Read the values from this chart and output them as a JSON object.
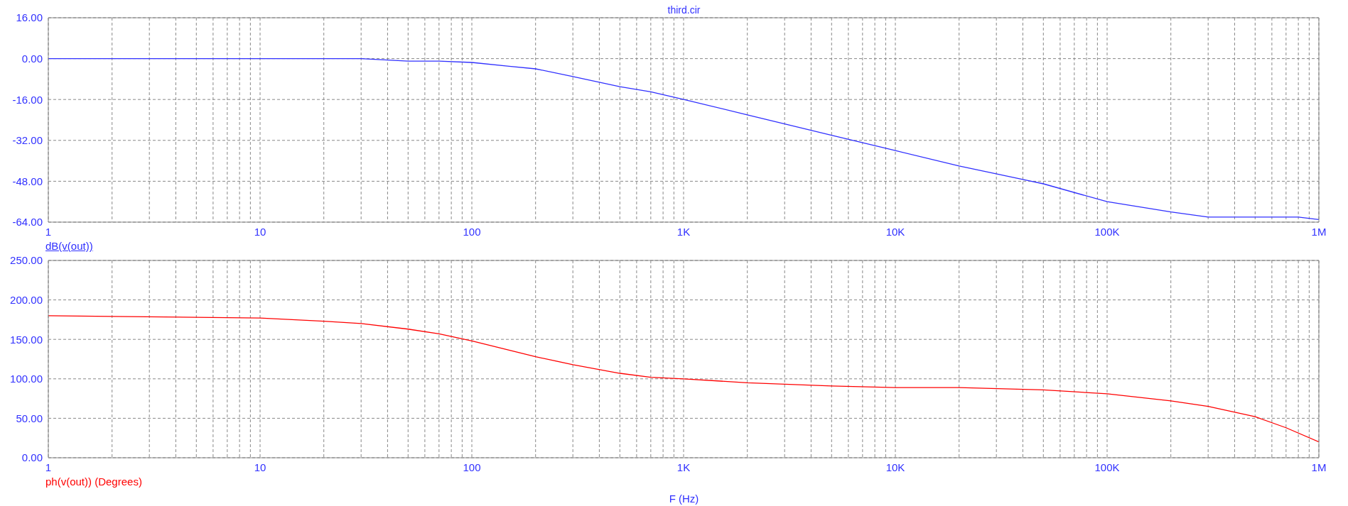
{
  "chart_data": [
    {
      "type": "line",
      "title": "third.cir",
      "log": "x",
      "grid": true,
      "legend": "bottom left",
      "x": [
        1,
        2,
        5,
        10,
        20,
        30,
        50,
        70,
        100,
        150,
        200,
        300,
        500,
        700,
        1000,
        2000,
        5000,
        10000,
        20000,
        50000,
        100000,
        200000,
        300000,
        500000,
        800000,
        1000000
      ],
      "series": [
        {
          "name": "dB(v(out))",
          "color": "#3030ff",
          "values": [
            0,
            0,
            0,
            0,
            0,
            0,
            -1,
            -1,
            -1.5,
            -3,
            -4,
            -7,
            -11,
            -13,
            -16,
            -22,
            -30,
            -36,
            -42,
            -49,
            -56,
            -60,
            -62,
            -62,
            -62,
            -63
          ]
        }
      ],
      "xlim": [
        1,
        1000000
      ],
      "ylim": [
        -64,
        16
      ],
      "yticks": [
        {
          "value": -64,
          "label": "-64.00"
        },
        {
          "value": -48,
          "label": "-48.00"
        },
        {
          "value": -32,
          "label": "-32.00"
        },
        {
          "value": -16,
          "label": "-16.00"
        },
        {
          "value": 0,
          "label": "0.00"
        },
        {
          "value": 16,
          "label": "16.00"
        }
      ],
      "xticks": [
        {
          "value": 1,
          "label": "1"
        },
        {
          "value": 2,
          "label": null
        },
        {
          "value": 3,
          "label": null
        },
        {
          "value": 4,
          "label": null
        },
        {
          "value": 5,
          "label": null
        },
        {
          "value": 6,
          "label": null
        },
        {
          "value": 7,
          "label": null
        },
        {
          "value": 8,
          "label": null
        },
        {
          "value": 9,
          "label": null
        },
        {
          "value": 10,
          "label": "10"
        },
        {
          "value": 20,
          "label": null
        },
        {
          "value": 30,
          "label": null
        },
        {
          "value": 40,
          "label": null
        },
        {
          "value": 50,
          "label": null
        },
        {
          "value": 60,
          "label": null
        },
        {
          "value": 70,
          "label": null
        },
        {
          "value": 80,
          "label": null
        },
        {
          "value": 90,
          "label": null
        },
        {
          "value": 100,
          "label": "100"
        },
        {
          "value": 200,
          "label": null
        },
        {
          "value": 300,
          "label": null
        },
        {
          "value": 400,
          "label": null
        },
        {
          "value": 500,
          "label": null
        },
        {
          "value": 600,
          "label": null
        },
        {
          "value": 700,
          "label": null
        },
        {
          "value": 800,
          "label": null
        },
        {
          "value": 900,
          "label": null
        },
        {
          "value": 1000,
          "label": "1K"
        },
        {
          "value": 2000,
          "label": null
        },
        {
          "value": 3000,
          "label": null
        },
        {
          "value": 4000,
          "label": null
        },
        {
          "value": 5000,
          "label": null
        },
        {
          "value": 6000,
          "label": null
        },
        {
          "value": 7000,
          "label": null
        },
        {
          "value": 8000,
          "label": null
        },
        {
          "value": 9000,
          "label": null
        },
        {
          "value": 10000,
          "label": "10K"
        },
        {
          "value": 20000,
          "label": null
        },
        {
          "value": 30000,
          "label": null
        },
        {
          "value": 40000,
          "label": null
        },
        {
          "value": 50000,
          "label": null
        },
        {
          "value": 60000,
          "label": null
        },
        {
          "value": 70000,
          "label": null
        },
        {
          "value": 80000,
          "label": null
        },
        {
          "value": 90000,
          "label": null
        },
        {
          "value": 100000,
          "label": "100K"
        },
        {
          "value": 200000,
          "label": null
        },
        {
          "value": 300000,
          "label": null
        },
        {
          "value": 400000,
          "label": null
        },
        {
          "value": 500000,
          "label": null
        },
        {
          "value": 600000,
          "label": null
        },
        {
          "value": 700000,
          "label": null
        },
        {
          "value": 800000,
          "label": null
        },
        {
          "value": 900000,
          "label": null
        },
        {
          "value": 1000000,
          "label": "1M"
        }
      ]
    },
    {
      "type": "line",
      "xlabel": "F (Hz)",
      "log": "x",
      "grid": true,
      "legend": "bottom left",
      "x": [
        1,
        2,
        5,
        10,
        20,
        30,
        50,
        70,
        100,
        200,
        300,
        500,
        700,
        1000,
        2000,
        5000,
        10000,
        20000,
        50000,
        100000,
        200000,
        300000,
        500000,
        700000,
        1000000
      ],
      "series": [
        {
          "name": "ph(v(out)) (Degrees)",
          "color": "#ff0000",
          "values": [
            180,
            179,
            178,
            177,
            173,
            170,
            163,
            157,
            148,
            128,
            118,
            107,
            102,
            100,
            95,
            91,
            89,
            89,
            86,
            81,
            72,
            65,
            52,
            38,
            20
          ]
        }
      ],
      "xlim": [
        1,
        1000000
      ],
      "ylim": [
        0,
        250
      ],
      "yticks": [
        {
          "value": 0,
          "label": "0.00"
        },
        {
          "value": 50,
          "label": "50.00"
        },
        {
          "value": 100,
          "label": "100.00"
        },
        {
          "value": 150,
          "label": "150.00"
        },
        {
          "value": 200,
          "label": "200.00"
        },
        {
          "value": 250,
          "label": "250.00"
        }
      ],
      "xticks": [
        {
          "value": 1,
          "label": "1"
        },
        {
          "value": 2,
          "label": null
        },
        {
          "value": 3,
          "label": null
        },
        {
          "value": 4,
          "label": null
        },
        {
          "value": 5,
          "label": null
        },
        {
          "value": 6,
          "label": null
        },
        {
          "value": 7,
          "label": null
        },
        {
          "value": 8,
          "label": null
        },
        {
          "value": 9,
          "label": null
        },
        {
          "value": 10,
          "label": "10"
        },
        {
          "value": 20,
          "label": null
        },
        {
          "value": 30,
          "label": null
        },
        {
          "value": 40,
          "label": null
        },
        {
          "value": 50,
          "label": null
        },
        {
          "value": 60,
          "label": null
        },
        {
          "value": 70,
          "label": null
        },
        {
          "value": 80,
          "label": null
        },
        {
          "value": 90,
          "label": null
        },
        {
          "value": 100,
          "label": "100"
        },
        {
          "value": 200,
          "label": null
        },
        {
          "value": 300,
          "label": null
        },
        {
          "value": 400,
          "label": null
        },
        {
          "value": 500,
          "label": null
        },
        {
          "value": 600,
          "label": null
        },
        {
          "value": 700,
          "label": null
        },
        {
          "value": 800,
          "label": null
        },
        {
          "value": 900,
          "label": null
        },
        {
          "value": 1000,
          "label": "1K"
        },
        {
          "value": 2000,
          "label": null
        },
        {
          "value": 3000,
          "label": null
        },
        {
          "value": 4000,
          "label": null
        },
        {
          "value": 5000,
          "label": null
        },
        {
          "value": 6000,
          "label": null
        },
        {
          "value": 7000,
          "label": null
        },
        {
          "value": 8000,
          "label": null
        },
        {
          "value": 9000,
          "label": null
        },
        {
          "value": 10000,
          "label": "10K"
        },
        {
          "value": 20000,
          "label": null
        },
        {
          "value": 30000,
          "label": null
        },
        {
          "value": 40000,
          "label": null
        },
        {
          "value": 50000,
          "label": null
        },
        {
          "value": 60000,
          "label": null
        },
        {
          "value": 70000,
          "label": null
        },
        {
          "value": 80000,
          "label": null
        },
        {
          "value": 90000,
          "label": null
        },
        {
          "value": 100000,
          "label": "100K"
        },
        {
          "value": 200000,
          "label": null
        },
        {
          "value": 300000,
          "label": null
        },
        {
          "value": 400000,
          "label": null
        },
        {
          "value": 500000,
          "label": null
        },
        {
          "value": 600000,
          "label": null
        },
        {
          "value": 700000,
          "label": null
        },
        {
          "value": 800000,
          "label": null
        },
        {
          "value": 900000,
          "label": null
        },
        {
          "value": 1000000,
          "label": "1M"
        }
      ]
    }
  ]
}
